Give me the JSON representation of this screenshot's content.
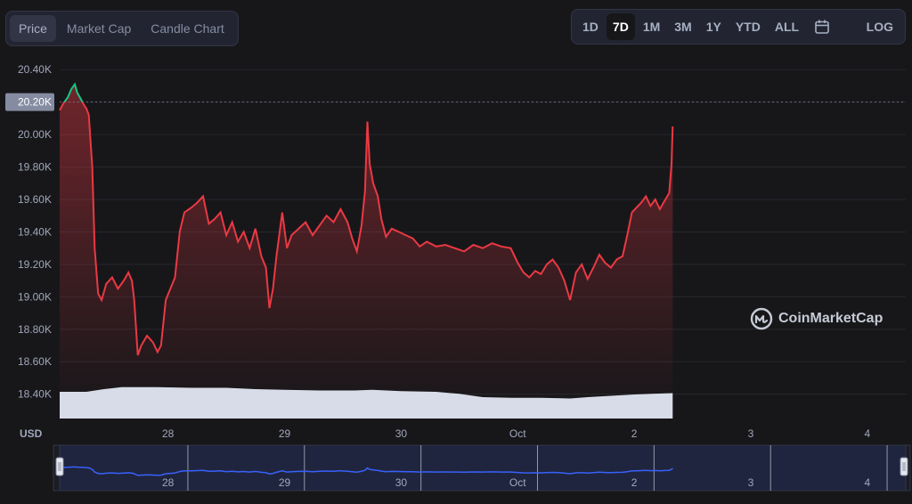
{
  "tabs": [
    {
      "label": "Price",
      "active": true
    },
    {
      "label": "Market Cap",
      "active": false
    },
    {
      "label": "Candle Chart",
      "active": false
    }
  ],
  "ranges": [
    {
      "label": "1D",
      "active": false
    },
    {
      "label": "7D",
      "active": true
    },
    {
      "label": "1M",
      "active": false
    },
    {
      "label": "3M",
      "active": false
    },
    {
      "label": "1Y",
      "active": false
    },
    {
      "label": "YTD",
      "active": false
    },
    {
      "label": "ALL",
      "active": false
    }
  ],
  "calendar_icon": "calendar-icon",
  "log_label": "LOG",
  "watermark": "CoinMarketCap",
  "colors": {
    "up": "#16c784",
    "down": "#ea3943",
    "volume": "#d7dce8",
    "navigator": "#3861fb",
    "background": "#17171a"
  },
  "chart_data": {
    "type": "line",
    "currency_label": "USD",
    "current_price_label": "20.20K",
    "reference_price": 20200,
    "y_ticks": [
      "18.40K",
      "18.60K",
      "18.80K",
      "19.00K",
      "19.20K",
      "19.40K",
      "19.60K",
      "19.80K",
      "20.00K",
      "20.20K",
      "20.40K"
    ],
    "y_tick_values": [
      18400,
      18600,
      18800,
      19000,
      19200,
      19400,
      19600,
      19800,
      20000,
      20200,
      20400
    ],
    "x_ticks": [
      "28",
      "29",
      "30",
      "Oct",
      "2",
      "3",
      "4"
    ],
    "x_tick_days": [
      1,
      2,
      3,
      4,
      5,
      6,
      7
    ],
    "ylim": [
      18250,
      20500
    ],
    "xlim": [
      0.07,
      7.33
    ],
    "price_series": {
      "name": "Price",
      "points": [
        [
          0.07,
          20150
        ],
        [
          0.1,
          20190
        ],
        [
          0.14,
          20230
        ],
        [
          0.17,
          20280
        ],
        [
          0.2,
          20310
        ],
        [
          0.22,
          20260
        ],
        [
          0.25,
          20220
        ],
        [
          0.28,
          20180
        ],
        [
          0.3,
          20160
        ],
        [
          0.32,
          20120
        ],
        [
          0.35,
          19800
        ],
        [
          0.37,
          19300
        ],
        [
          0.4,
          19020
        ],
        [
          0.43,
          18980
        ],
        [
          0.47,
          19080
        ],
        [
          0.52,
          19120
        ],
        [
          0.57,
          19050
        ],
        [
          0.62,
          19100
        ],
        [
          0.66,
          19150
        ],
        [
          0.69,
          19100
        ],
        [
          0.71,
          18980
        ],
        [
          0.74,
          18640
        ],
        [
          0.77,
          18700
        ],
        [
          0.82,
          18760
        ],
        [
          0.87,
          18720
        ],
        [
          0.91,
          18660
        ],
        [
          0.94,
          18700
        ],
        [
          0.98,
          18980
        ],
        [
          1.02,
          19050
        ],
        [
          1.06,
          19120
        ],
        [
          1.1,
          19400
        ],
        [
          1.14,
          19520
        ],
        [
          1.2,
          19550
        ],
        [
          1.25,
          19580
        ],
        [
          1.3,
          19620
        ],
        [
          1.35,
          19450
        ],
        [
          1.4,
          19480
        ],
        [
          1.45,
          19520
        ],
        [
          1.5,
          19380
        ],
        [
          1.55,
          19460
        ],
        [
          1.6,
          19340
        ],
        [
          1.65,
          19400
        ],
        [
          1.7,
          19300
        ],
        [
          1.75,
          19420
        ],
        [
          1.8,
          19250
        ],
        [
          1.84,
          19180
        ],
        [
          1.87,
          18930
        ],
        [
          1.9,
          19050
        ],
        [
          1.93,
          19250
        ],
        [
          1.98,
          19520
        ],
        [
          2.02,
          19300
        ],
        [
          2.06,
          19380
        ],
        [
          2.12,
          19420
        ],
        [
          2.18,
          19460
        ],
        [
          2.24,
          19380
        ],
        [
          2.3,
          19440
        ],
        [
          2.36,
          19500
        ],
        [
          2.42,
          19460
        ],
        [
          2.48,
          19540
        ],
        [
          2.54,
          19460
        ],
        [
          2.58,
          19360
        ],
        [
          2.62,
          19280
        ],
        [
          2.66,
          19440
        ],
        [
          2.69,
          19650
        ],
        [
          2.71,
          20080
        ],
        [
          2.73,
          19820
        ],
        [
          2.76,
          19700
        ],
        [
          2.8,
          19620
        ],
        [
          2.83,
          19480
        ],
        [
          2.87,
          19370
        ],
        [
          2.92,
          19420
        ],
        [
          2.98,
          19400
        ],
        [
          3.04,
          19380
        ],
        [
          3.1,
          19360
        ],
        [
          3.16,
          19310
        ],
        [
          3.22,
          19340
        ],
        [
          3.3,
          19310
        ],
        [
          3.38,
          19320
        ],
        [
          3.46,
          19300
        ],
        [
          3.54,
          19280
        ],
        [
          3.62,
          19320
        ],
        [
          3.7,
          19300
        ],
        [
          3.78,
          19330
        ],
        [
          3.86,
          19310
        ],
        [
          3.94,
          19300
        ],
        [
          4.0,
          19210
        ],
        [
          4.05,
          19150
        ],
        [
          4.1,
          19120
        ],
        [
          4.15,
          19160
        ],
        [
          4.2,
          19140
        ],
        [
          4.25,
          19200
        ],
        [
          4.3,
          19230
        ],
        [
          4.35,
          19180
        ],
        [
          4.4,
          19100
        ],
        [
          4.45,
          18980
        ],
        [
          4.5,
          19150
        ],
        [
          4.55,
          19200
        ],
        [
          4.6,
          19110
        ],
        [
          4.65,
          19180
        ],
        [
          4.7,
          19260
        ],
        [
          4.75,
          19210
        ],
        [
          4.8,
          19180
        ],
        [
          4.85,
          19230
        ],
        [
          4.9,
          19250
        ],
        [
          4.94,
          19380
        ],
        [
          4.98,
          19520
        ],
        [
          5.02,
          19550
        ],
        [
          5.06,
          19580
        ],
        [
          5.1,
          19620
        ],
        [
          5.14,
          19560
        ],
        [
          5.18,
          19600
        ],
        [
          5.22,
          19540
        ],
        [
          5.26,
          19590
        ],
        [
          5.3,
          19640
        ],
        [
          5.32,
          19820
        ],
        [
          5.33,
          20050
        ]
      ]
    },
    "volume_series": {
      "name": "Volume",
      "relative_points": [
        [
          0.07,
          0.4
        ],
        [
          0.3,
          0.4
        ],
        [
          0.45,
          0.44
        ],
        [
          0.6,
          0.47
        ],
        [
          0.9,
          0.47
        ],
        [
          1.2,
          0.46
        ],
        [
          1.5,
          0.46
        ],
        [
          1.75,
          0.44
        ],
        [
          2.0,
          0.43
        ],
        [
          2.3,
          0.42
        ],
        [
          2.6,
          0.42
        ],
        [
          2.75,
          0.43
        ],
        [
          3.0,
          0.41
        ],
        [
          3.3,
          0.4
        ],
        [
          3.5,
          0.37
        ],
        [
          3.7,
          0.32
        ],
        [
          3.95,
          0.31
        ],
        [
          4.2,
          0.31
        ],
        [
          4.45,
          0.3
        ],
        [
          4.6,
          0.32
        ],
        [
          4.8,
          0.34
        ],
        [
          5.0,
          0.36
        ],
        [
          5.15,
          0.37
        ],
        [
          5.33,
          0.38
        ]
      ]
    },
    "navigator": {
      "x_ticks": [
        "28",
        "29",
        "30",
        "Oct",
        "2",
        "3",
        "4"
      ]
    }
  }
}
